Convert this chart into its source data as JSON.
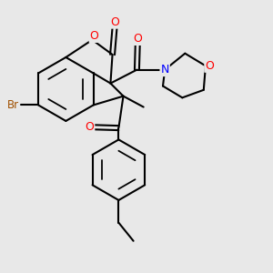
{
  "background_color": "#e8e8e8",
  "bond_color": "#000000",
  "bond_width": 1.5,
  "atom_colors": {
    "O": "#ff0000",
    "N": "#0000ff",
    "Br": "#a05000",
    "C": "#000000"
  },
  "figsize": [
    3.0,
    3.0
  ],
  "dpi": 100,
  "xlim": [
    -2.5,
    4.5
  ],
  "ylim": [
    -4.0,
    3.0
  ]
}
